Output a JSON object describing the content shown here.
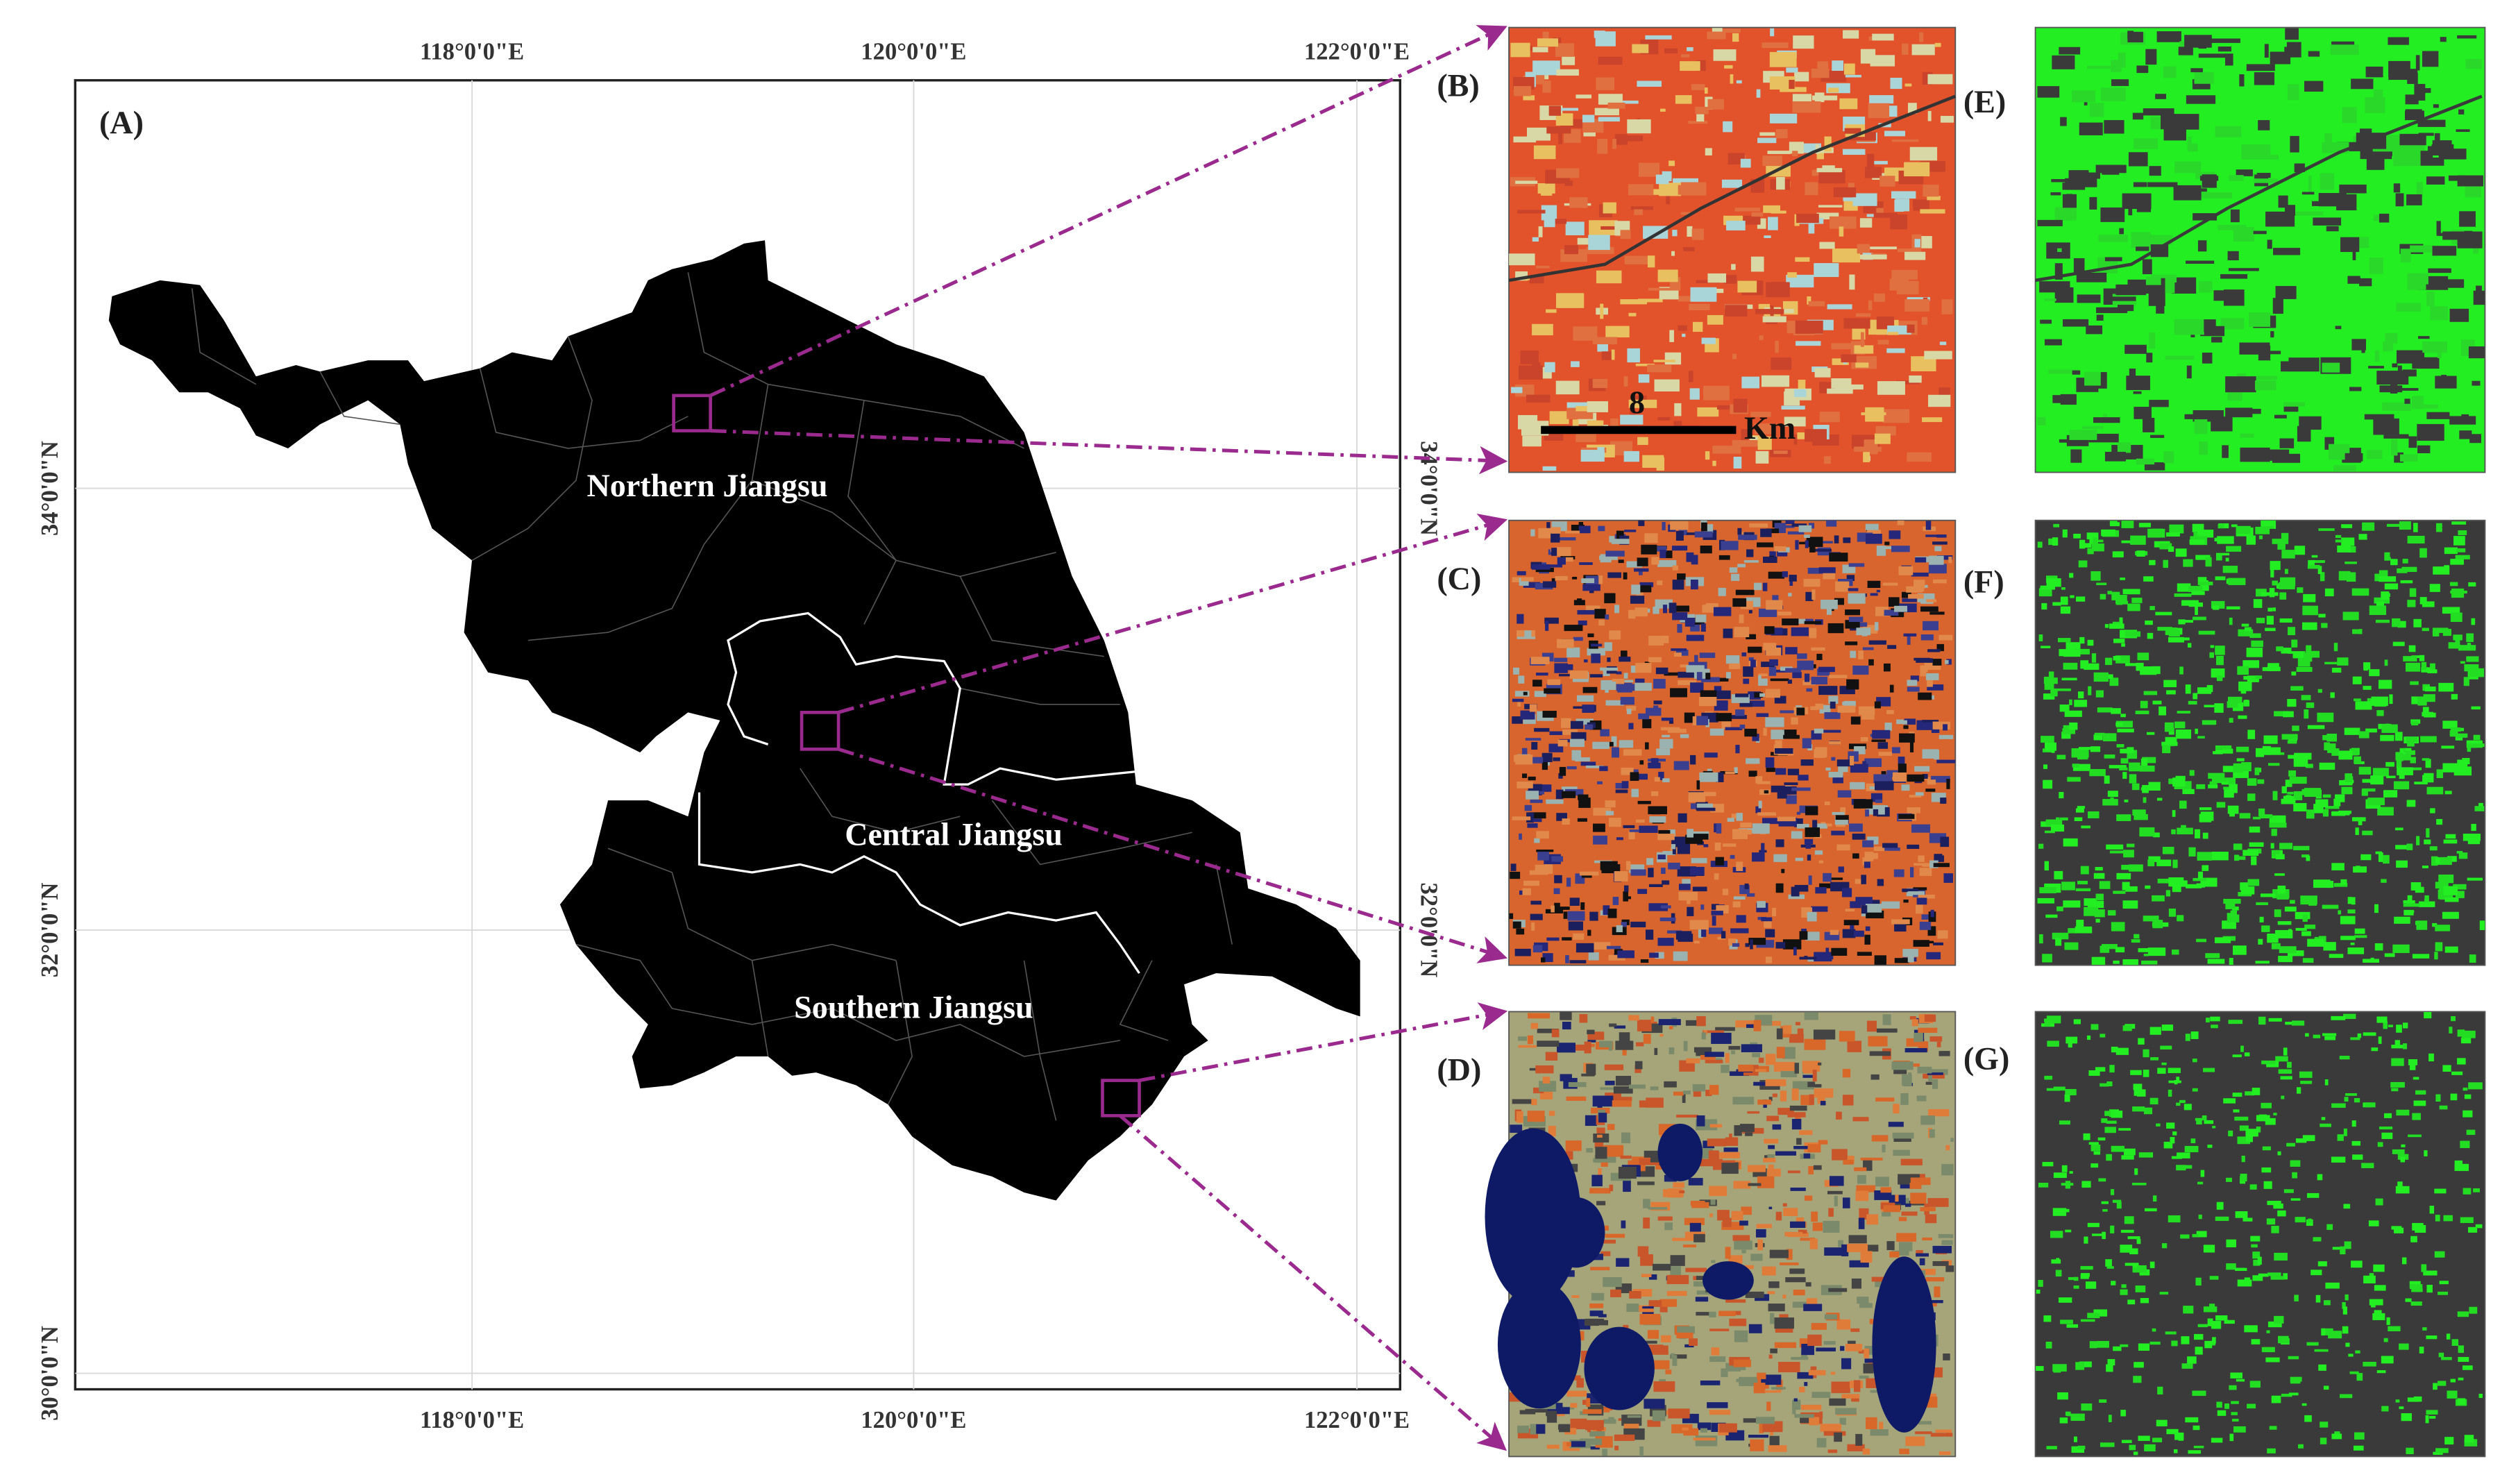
{
  "map": {
    "panel_label": "(A)",
    "top_lon_labels": [
      "118°0'0\"E",
      "120°0'0\"E",
      "122°0'0\"E"
    ],
    "bottom_lon_labels": [
      "118°0'0\"E",
      "120°0'0\"E",
      "122°0'0\"E"
    ],
    "left_lat_labels": [
      "34°0'0\"N",
      "32°0'0\"N",
      "30°0'0\"N"
    ],
    "right_lat_labels": [
      "34°0'0\"N",
      "32°0'0\"N"
    ],
    "regions": [
      "Northern Jiangsu",
      "Central Jiangsu",
      "Southern Jiangsu"
    ]
  },
  "panels": {
    "B": "(B)",
    "C": "(C)",
    "D": "(D)",
    "E": "(E)",
    "F": "(F)",
    "G": "(G)"
  },
  "scale_bar": {
    "value": "8",
    "unit": "Km"
  },
  "colors": {
    "land": "#000000",
    "callout": "#9b2a8e",
    "crop": "#22ee22",
    "background_class": "#3a3a3a",
    "false_color_crop": "#e2532c"
  }
}
